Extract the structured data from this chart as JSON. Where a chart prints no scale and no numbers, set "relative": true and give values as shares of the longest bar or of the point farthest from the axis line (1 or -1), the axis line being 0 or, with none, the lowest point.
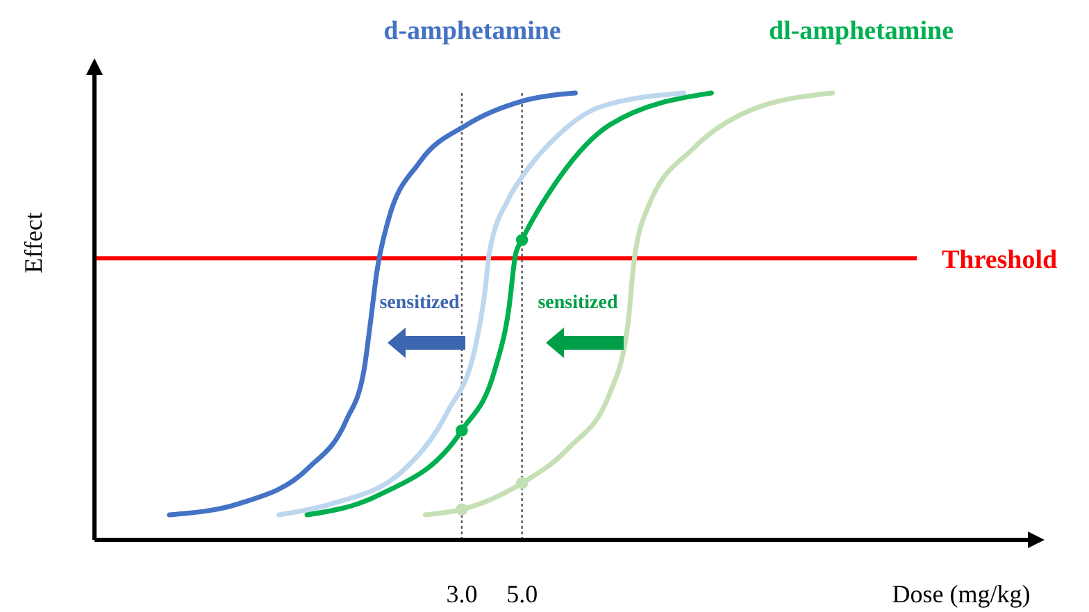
{
  "chart_data": {
    "type": "line",
    "relative": true,
    "xlabel": "Dose (mg/kg)",
    "ylabel": "Effect",
    "xlim": [
      -9.2,
      21.8
    ],
    "xticks": [
      {
        "value": 3,
        "label": "3.0"
      },
      {
        "value": 5,
        "label": "5.0"
      }
    ],
    "legend": "top",
    "marker": "none",
    "line_style": "solid",
    "series": [
      {
        "name": "d-amphetamine",
        "color": "#4472c4",
        "x": [
          -6.71,
          -4.4,
          -2.09,
          -0.84,
          -0.25,
          -0.02,
          0.17,
          0.54,
          1.6,
          3.17,
          5.02,
          6.77
        ],
        "values": [
          0.056,
          0.081,
          0.161,
          0.267,
          0.379,
          0.494,
          0.596,
          0.711,
          0.845,
          0.929,
          0.982,
          1
        ]
      },
      {
        "color": "#bdd7ee",
        "x": [
          -3.07,
          -1.31,
          1.0,
          2.52,
          3.45,
          3.77,
          3.91,
          4.56,
          5.02,
          6.08,
          7.6,
          10.37
        ],
        "values": [
          0.056,
          0.081,
          0.152,
          0.286,
          0.432,
          0.556,
          0.64,
          0.764,
          0.814,
          0.898,
          0.969,
          1
        ]
      },
      {
        "name": "dl-amphetamine",
        "color": "#00b050",
        "x": [
          -2.14,
          0.21,
          3.0,
          4.09,
          4.56,
          4.79,
          5.0,
          6.08,
          7.92,
          11.29
        ],
        "values": [
          0.056,
          0.099,
          0.245,
          0.379,
          0.516,
          0.64,
          0.671,
          0.795,
          0.929,
          1
        ]
      },
      {
        "color": "#c5e0b4",
        "x": [
          1.79,
          3.0,
          5.0,
          6.54,
          7.92,
          8.52,
          8.71,
          9.17,
          10.69,
          12.54,
          15.31
        ],
        "values": [
          0.056,
          0.068,
          0.127,
          0.205,
          0.329,
          0.484,
          0.618,
          0.742,
          0.876,
          0.96,
          1
        ]
      },
      {
        "type": "scatter",
        "marker": "circle",
        "color": "#00b050",
        "x": [
          3.0,
          5.0
        ],
        "values": [
          0.245,
          0.671
        ]
      },
      {
        "type": "scatter",
        "marker": "circle",
        "color": "#c5e0b4",
        "x": [
          3.0,
          5.0
        ],
        "values": [
          0.068,
          0.127
        ]
      }
    ],
    "ref_lines": [
      {
        "axis": "y",
        "value": 0.63,
        "label": "Threshold",
        "color": "#ff0000",
        "line_style": "solid"
      },
      {
        "axis": "x",
        "value": 3,
        "color": "#595959",
        "line_style": "dotted"
      },
      {
        "axis": "x",
        "value": 5,
        "color": "#595959",
        "line_style": "dotted"
      }
    ],
    "annotations": [
      "sensitized",
      "sensitized"
    ]
  }
}
